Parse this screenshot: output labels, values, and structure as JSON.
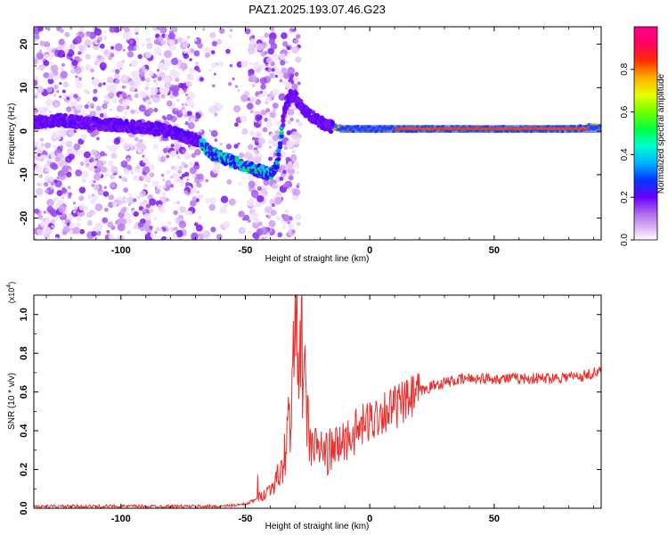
{
  "title": "PAZ1.2025.193.07.46.G23",
  "chart_data": [
    {
      "type": "heatmap",
      "xlabel": "Height of straight line (km)",
      "ylabel": "Frequency (Hz)",
      "xlim": [
        -135,
        93
      ],
      "ylim": [
        -25,
        24
      ],
      "xticks": [
        -100,
        -50,
        0,
        50
      ],
      "yticks": [
        -20,
        -10,
        0,
        10,
        20
      ],
      "colorbar": {
        "label": "Normalized spectral amplitude",
        "range": [
          0,
          1
        ],
        "ticks": [
          "0.0",
          "0.2",
          "0.4",
          "0.6",
          "0.8"
        ]
      },
      "ridge": {
        "x": [
          -135,
          -125,
          -115,
          -105,
          -95,
          -85,
          -75,
          -68,
          -64,
          -60,
          -55,
          -50,
          -45,
          -40,
          -37,
          -34,
          -32,
          -30,
          -28,
          -25,
          -20,
          -15,
          -10,
          0,
          10,
          20,
          30,
          40,
          50,
          55,
          60,
          70,
          80,
          90
        ],
        "y": [
          2,
          2.5,
          2,
          1.5,
          1,
          0.5,
          -1,
          -2.5,
          -5,
          -6,
          -7,
          -8,
          -9,
          -10,
          -7,
          6,
          8,
          8,
          6,
          4,
          2,
          1,
          0.5,
          0.5,
          0.5,
          0.5,
          0.5,
          0.5,
          0.5,
          0.5,
          0.5,
          0.5,
          0.5,
          1
        ]
      }
    },
    {
      "type": "line",
      "xlabel": "Height of straight line (km)",
      "ylabel": "SNR (10 * v/v)",
      "y_multiplier_label": "(x10",
      "y_multiplier_exp": "4",
      "xlim": [
        -135,
        93
      ],
      "ylim": [
        0,
        1.1
      ],
      "xticks": [
        -100,
        -50,
        0,
        50
      ],
      "yticks": [
        0,
        0.2,
        0.4,
        0.6,
        0.8,
        1.0
      ],
      "series": [
        {
          "color": "#e8312f",
          "x": [
            -135,
            -120,
            -100,
            -80,
            -60,
            -50,
            -45,
            -40,
            -35,
            -32,
            -30,
            -29,
            -28,
            -27,
            -26,
            -25,
            -24,
            -22,
            -20,
            -18,
            -15,
            -10,
            -5,
            0,
            5,
            10,
            15,
            20,
            25,
            30,
            40,
            50,
            60,
            70,
            80,
            85,
            90,
            93
          ],
          "y": [
            0.01,
            0.01,
            0.01,
            0.01,
            0.01,
            0.02,
            0.05,
            0.1,
            0.2,
            0.5,
            0.85,
            1.12,
            0.9,
            0.75,
            0.6,
            0.45,
            0.35,
            0.3,
            0.32,
            0.28,
            0.3,
            0.35,
            0.4,
            0.45,
            0.5,
            0.52,
            0.55,
            0.6,
            0.63,
            0.65,
            0.67,
            0.67,
            0.67,
            0.67,
            0.68,
            0.68,
            0.7,
            0.7
          ]
        }
      ]
    }
  ]
}
